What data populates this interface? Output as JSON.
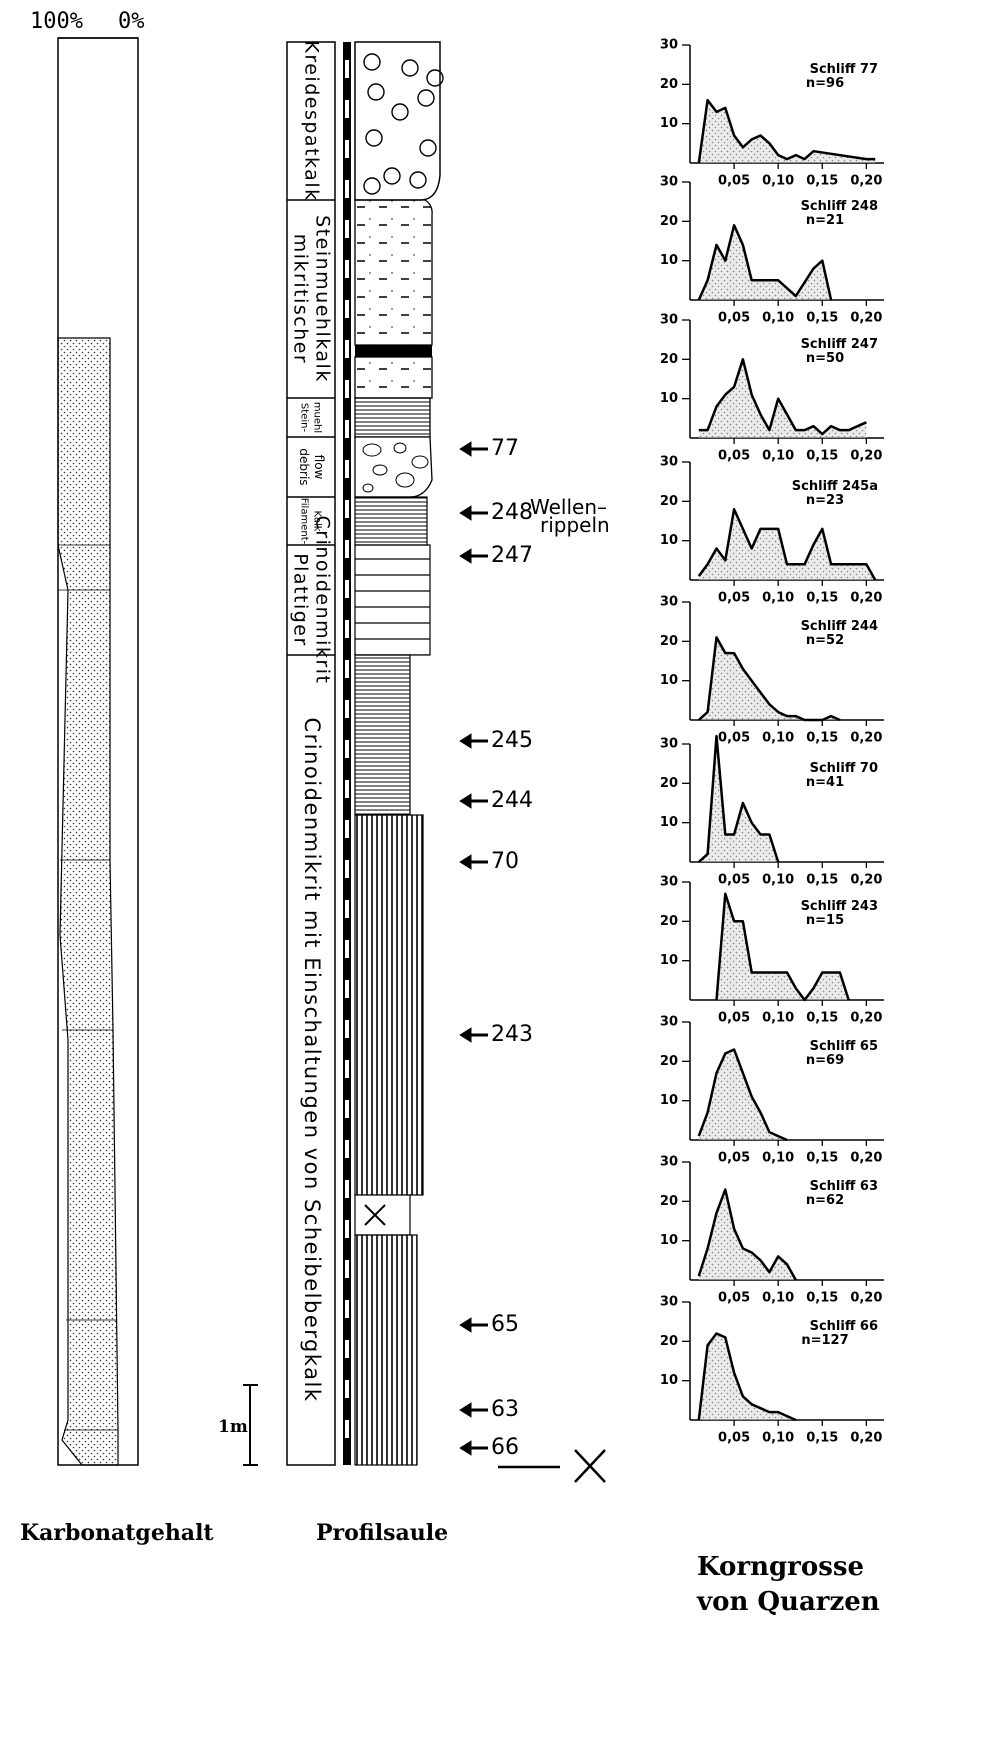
{
  "panel_titles": {
    "carbonate": "Karbonatgehalt",
    "profile": "Profilsaule",
    "grain": [
      "Korngrosse",
      "von Quarzen"
    ]
  },
  "carbonate_axis": {
    "left": "100%",
    "right": "0%"
  },
  "profile": {
    "units": [
      {
        "lines": [
          "Kreidespatkalk"
        ]
      },
      {
        "lines": [
          "mikritischer",
          "Steinmuehlkalk"
        ]
      },
      {
        "lines": [
          "Stein-",
          "muehl"
        ]
      },
      {
        "lines": [
          "debris",
          "flow"
        ]
      },
      {
        "lines": [
          "Filament-",
          "Kalk"
        ]
      },
      {
        "lines": [
          "Plattiger",
          "Crinoidenmikrit"
        ]
      },
      {
        "lines": [
          "Crinoidenmikrit mit Einschaltungen von Scheibelbergkalk"
        ]
      }
    ],
    "samples": [
      "77",
      "248",
      "247",
      "245",
      "244",
      "70",
      "243",
      "65",
      "63",
      "66"
    ],
    "annotation": [
      "Wellen–",
      "rippeln"
    ],
    "scale": "1m"
  },
  "chart_data": [
    {
      "type": "area",
      "title": "Schliff 77",
      "subtitle": "n=96",
      "color": "#d8d8d8",
      "x": [
        0.01,
        0.02,
        0.03,
        0.04,
        0.05,
        0.06,
        0.07,
        0.08,
        0.09,
        0.1,
        0.11,
        0.12,
        0.13,
        0.14,
        0.2,
        0.21
      ],
      "values": [
        0,
        16,
        13,
        14,
        7,
        4,
        6,
        7,
        5,
        2,
        1,
        2,
        1,
        3,
        1,
        1
      ],
      "xlim": [
        0,
        0.22
      ],
      "ylim": [
        0,
        30
      ],
      "xticks": [
        {
          "value": 0.05,
          "label": "0,05"
        },
        {
          "value": 0.1,
          "label": "0,10"
        },
        {
          "value": 0.15,
          "label": "0,15"
        },
        {
          "value": 0.2,
          "label": "0,20"
        }
      ],
      "yticks": [
        10,
        20,
        30
      ]
    },
    {
      "type": "area",
      "title": "Schliff 248",
      "subtitle": "n=21",
      "color": "#d8d8d8",
      "x": [
        0.01,
        0.02,
        0.03,
        0.04,
        0.05,
        0.06,
        0.07,
        0.08,
        0.09,
        0.1,
        0.11,
        0.12,
        0.14,
        0.15,
        0.16
      ],
      "values": [
        0,
        5,
        14,
        10,
        19,
        14,
        5,
        5,
        5,
        5,
        3,
        1,
        8,
        10,
        0
      ],
      "xlim": [
        0,
        0.22
      ],
      "ylim": [
        0,
        30
      ],
      "xticks": [
        {
          "value": 0.05,
          "label": "0,05"
        },
        {
          "value": 0.1,
          "label": "0,10"
        },
        {
          "value": 0.15,
          "label": "0,15"
        },
        {
          "value": 0.2,
          "label": "0,20"
        }
      ],
      "yticks": [
        10,
        20,
        30
      ]
    },
    {
      "type": "area",
      "title": "Schliff 247",
      "subtitle": "n=50",
      "color": "#d8d8d8",
      "x": [
        0.01,
        0.02,
        0.03,
        0.04,
        0.05,
        0.06,
        0.07,
        0.08,
        0.09,
        0.1,
        0.11,
        0.12,
        0.13,
        0.14,
        0.15,
        0.16,
        0.17,
        0.18,
        0.19,
        0.2
      ],
      "values": [
        2,
        2,
        8,
        11,
        13,
        20,
        11,
        6,
        2,
        10,
        6,
        2,
        2,
        3,
        1,
        3,
        2,
        2,
        3,
        4
      ],
      "xlim": [
        0,
        0.22
      ],
      "ylim": [
        0,
        30
      ],
      "xticks": [
        {
          "value": 0.05,
          "label": "0,05"
        },
        {
          "value": 0.1,
          "label": "0,10"
        },
        {
          "value": 0.15,
          "label": "0,15"
        },
        {
          "value": 0.2,
          "label": "0,20"
        }
      ],
      "yticks": [
        10,
        20,
        30
      ]
    },
    {
      "type": "area",
      "title": "Schliff 245a",
      "subtitle": "n=23",
      "color": "#d8d8d8",
      "x": [
        0.01,
        0.02,
        0.03,
        0.04,
        0.05,
        0.06,
        0.07,
        0.08,
        0.09,
        0.1,
        0.11,
        0.12,
        0.13,
        0.14,
        0.15,
        0.16,
        0.17,
        0.18,
        0.19,
        0.2,
        0.21
      ],
      "values": [
        1,
        4,
        8,
        5,
        18,
        13,
        8,
        13,
        13,
        13,
        4,
        4,
        4,
        9,
        13,
        4,
        4,
        4,
        4,
        4,
        0
      ],
      "xlim": [
        0,
        0.22
      ],
      "ylim": [
        0,
        30
      ],
      "xticks": [
        {
          "value": 0.05,
          "label": "0,05"
        },
        {
          "value": 0.1,
          "label": "0,10"
        },
        {
          "value": 0.15,
          "label": "0,15"
        },
        {
          "value": 0.2,
          "label": "0,20"
        }
      ],
      "yticks": [
        10,
        20,
        30
      ]
    },
    {
      "type": "area",
      "title": "Schliff 244",
      "subtitle": "n=52",
      "color": "#d8d8d8",
      "x": [
        0.01,
        0.02,
        0.03,
        0.04,
        0.05,
        0.06,
        0.07,
        0.08,
        0.09,
        0.1,
        0.11,
        0.12,
        0.13,
        0.15,
        0.16,
        0.17
      ],
      "values": [
        0,
        2,
        21,
        17,
        17,
        13,
        10,
        7,
        4,
        2,
        1,
        1,
        0,
        0,
        1,
        0
      ],
      "xlim": [
        0,
        0.22
      ],
      "ylim": [
        0,
        30
      ],
      "xticks": [
        {
          "value": 0.05,
          "label": "0,05"
        },
        {
          "value": 0.1,
          "label": "0,10"
        },
        {
          "value": 0.15,
          "label": "0,15"
        },
        {
          "value": 0.2,
          "label": "0,20"
        }
      ],
      "yticks": [
        10,
        20,
        30
      ]
    },
    {
      "type": "area",
      "title": "Schliff 70",
      "subtitle": "n=41",
      "color": "#d8d8d8",
      "x": [
        0.01,
        0.02,
        0.03,
        0.04,
        0.05,
        0.06,
        0.07,
        0.08,
        0.09,
        0.1
      ],
      "values": [
        0,
        2,
        32,
        7,
        7,
        15,
        10,
        7,
        7,
        0
      ],
      "xlim": [
        0,
        0.22
      ],
      "ylim": [
        0,
        30
      ],
      "xticks": [
        {
          "value": 0.05,
          "label": "0,05"
        },
        {
          "value": 0.1,
          "label": "0,10"
        },
        {
          "value": 0.15,
          "label": "0,15"
        },
        {
          "value": 0.2,
          "label": "0,20"
        }
      ],
      "yticks": [
        10,
        20,
        30
      ]
    },
    {
      "type": "area",
      "title": "Schliff 243",
      "subtitle": "n=15",
      "color": "#d8d8d8",
      "x": [
        0.03,
        0.04,
        0.05,
        0.06,
        0.07,
        0.08,
        0.09,
        0.1,
        0.11,
        0.12,
        0.13,
        0.14,
        0.15,
        0.16,
        0.17,
        0.18
      ],
      "values": [
        0,
        27,
        20,
        20,
        7,
        7,
        7,
        7,
        7,
        3,
        0,
        3,
        7,
        7,
        7,
        0
      ],
      "xlim": [
        0,
        0.22
      ],
      "ylim": [
        0,
        30
      ],
      "xticks": [
        {
          "value": 0.05,
          "label": "0,05"
        },
        {
          "value": 0.1,
          "label": "0,10"
        },
        {
          "value": 0.15,
          "label": "0,15"
        },
        {
          "value": 0.2,
          "label": "0,20"
        }
      ],
      "yticks": [
        10,
        20,
        30
      ]
    },
    {
      "type": "area",
      "title": "Schliff 65",
      "subtitle": "n=69",
      "color": "#d8d8d8",
      "x": [
        0.01,
        0.02,
        0.03,
        0.04,
        0.05,
        0.06,
        0.07,
        0.08,
        0.09,
        0.1,
        0.11
      ],
      "values": [
        1,
        7,
        17,
        22,
        23,
        17,
        11,
        7,
        2,
        1,
        0
      ],
      "xlim": [
        0,
        0.22
      ],
      "ylim": [
        0,
        30
      ],
      "xticks": [
        {
          "value": 0.05,
          "label": "0,05"
        },
        {
          "value": 0.1,
          "label": "0,10"
        },
        {
          "value": 0.15,
          "label": "0,15"
        },
        {
          "value": 0.2,
          "label": "0,20"
        }
      ],
      "yticks": [
        10,
        20,
        30
      ]
    },
    {
      "type": "area",
      "title": "Schliff 63",
      "subtitle": "n=62",
      "color": "#d8d8d8",
      "x": [
        0.01,
        0.02,
        0.03,
        0.04,
        0.05,
        0.06,
        0.07,
        0.08,
        0.09,
        0.1,
        0.11,
        0.12
      ],
      "values": [
        1,
        8,
        17,
        23,
        13,
        8,
        7,
        5,
        2,
        6,
        4,
        0
      ],
      "xlim": [
        0,
        0.22
      ],
      "ylim": [
        0,
        30
      ],
      "xticks": [
        {
          "value": 0.05,
          "label": "0,05"
        },
        {
          "value": 0.1,
          "label": "0,10"
        },
        {
          "value": 0.15,
          "label": "0,15"
        },
        {
          "value": 0.2,
          "label": "0,20"
        }
      ],
      "yticks": [
        10,
        20,
        30
      ]
    },
    {
      "type": "area",
      "title": "Schliff 66",
      "subtitle": "n=127",
      "color": "#d8d8d8",
      "x": [
        0.01,
        0.02,
        0.03,
        0.04,
        0.05,
        0.06,
        0.07,
        0.08,
        0.09,
        0.1,
        0.11,
        0.12
      ],
      "values": [
        0,
        19,
        22,
        21,
        12,
        6,
        4,
        3,
        2,
        2,
        1,
        0
      ],
      "xlim": [
        0,
        0.22
      ],
      "ylim": [
        0,
        30
      ],
      "xticks": [
        {
          "value": 0.05,
          "label": "0,05"
        },
        {
          "value": 0.1,
          "label": "0,10"
        },
        {
          "value": 0.15,
          "label": "0,15"
        },
        {
          "value": 0.2,
          "label": "0,20"
        }
      ],
      "yticks": [
        10,
        20,
        30
      ]
    }
  ]
}
